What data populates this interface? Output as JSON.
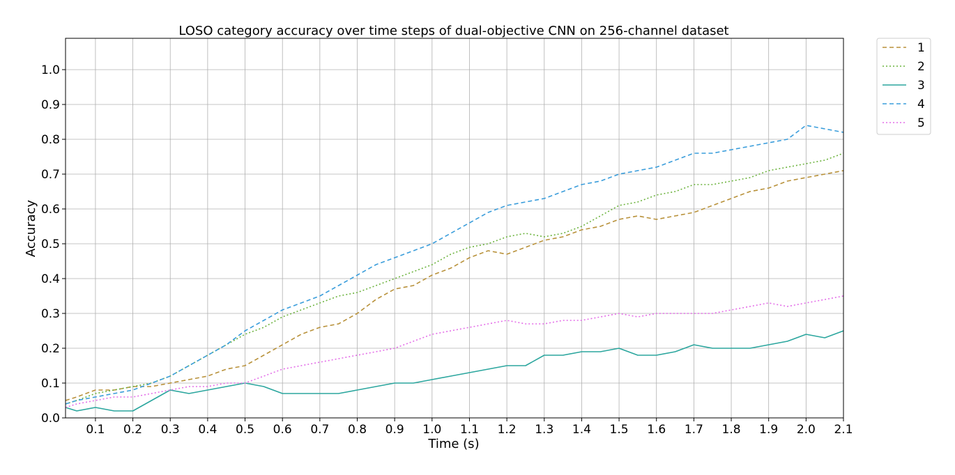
{
  "chart_data": {
    "type": "line",
    "title": "LOSO category accuracy over time steps of dual-objective CNN on 256-channel dataset",
    "xlabel": "Time (s)",
    "ylabel": "Accuracy",
    "xlim": [
      0.02,
      2.1
    ],
    "ylim": [
      0.0,
      1.09
    ],
    "x_ticks": [
      "0.1",
      "0.2",
      "0.3",
      "0.4",
      "0.5",
      "0.6",
      "0.7",
      "0.8",
      "0.9",
      "1.0",
      "1.1",
      "1.2",
      "1.3",
      "1.4",
      "1.5",
      "1.6",
      "1.7",
      "1.8",
      "1.9",
      "2.0",
      "2.1"
    ],
    "y_ticks": [
      "0.0",
      "0.1",
      "0.2",
      "0.3",
      "0.4",
      "0.5",
      "0.6",
      "0.7",
      "0.8",
      "0.9",
      "1.0"
    ],
    "grid": true,
    "legend_position": "outside-top-right",
    "x": [
      0.02,
      0.05,
      0.1,
      0.15,
      0.2,
      0.25,
      0.3,
      0.35,
      0.4,
      0.45,
      0.5,
      0.55,
      0.6,
      0.65,
      0.7,
      0.75,
      0.8,
      0.85,
      0.9,
      0.95,
      1.0,
      1.05,
      1.1,
      1.15,
      1.2,
      1.25,
      1.3,
      1.35,
      1.4,
      1.45,
      1.5,
      1.55,
      1.6,
      1.65,
      1.7,
      1.75,
      1.8,
      1.85,
      1.9,
      1.95,
      2.0,
      2.05,
      2.1
    ],
    "series": [
      {
        "name": "1",
        "color": "#b8913a",
        "dash": "6,4",
        "values": [
          0.05,
          0.06,
          0.08,
          0.08,
          0.09,
          0.09,
          0.1,
          0.11,
          0.12,
          0.14,
          0.15,
          0.18,
          0.21,
          0.24,
          0.26,
          0.27,
          0.3,
          0.34,
          0.37,
          0.38,
          0.41,
          0.43,
          0.46,
          0.48,
          0.47,
          0.49,
          0.51,
          0.52,
          0.54,
          0.55,
          0.57,
          0.58,
          0.57,
          0.58,
          0.59,
          0.61,
          0.63,
          0.65,
          0.66,
          0.68,
          0.69,
          0.7,
          0.71
        ]
      },
      {
        "name": "2",
        "color": "#6db33f",
        "dash": "2,3",
        "values": [
          0.04,
          0.05,
          0.07,
          0.08,
          0.09,
          0.1,
          0.12,
          0.15,
          0.18,
          0.21,
          0.24,
          0.26,
          0.29,
          0.31,
          0.33,
          0.35,
          0.36,
          0.38,
          0.4,
          0.42,
          0.44,
          0.47,
          0.49,
          0.5,
          0.52,
          0.53,
          0.52,
          0.53,
          0.55,
          0.58,
          0.61,
          0.62,
          0.64,
          0.65,
          0.67,
          0.67,
          0.68,
          0.69,
          0.71,
          0.72,
          0.73,
          0.74,
          0.76
        ]
      },
      {
        "name": "3",
        "color": "#2ba69e",
        "dash": "",
        "values": [
          0.03,
          0.02,
          0.03,
          0.02,
          0.02,
          0.05,
          0.08,
          0.07,
          0.08,
          0.09,
          0.1,
          0.09,
          0.07,
          0.07,
          0.07,
          0.07,
          0.08,
          0.09,
          0.1,
          0.1,
          0.11,
          0.12,
          0.13,
          0.14,
          0.15,
          0.15,
          0.18,
          0.18,
          0.19,
          0.19,
          0.2,
          0.18,
          0.18,
          0.19,
          0.21,
          0.2,
          0.2,
          0.2,
          0.21,
          0.22,
          0.24,
          0.23,
          0.25
        ]
      },
      {
        "name": "4",
        "color": "#3a9ddb",
        "dash": "6,4",
        "values": [
          0.04,
          0.05,
          0.06,
          0.07,
          0.08,
          0.1,
          0.12,
          0.15,
          0.18,
          0.21,
          0.25,
          0.28,
          0.31,
          0.33,
          0.35,
          0.38,
          0.41,
          0.44,
          0.46,
          0.48,
          0.5,
          0.53,
          0.56,
          0.59,
          0.61,
          0.62,
          0.63,
          0.65,
          0.67,
          0.68,
          0.7,
          0.71,
          0.72,
          0.74,
          0.76,
          0.76,
          0.77,
          0.78,
          0.79,
          0.8,
          0.84,
          0.83,
          0.82
        ]
      },
      {
        "name": "5",
        "color": "#e46ee8",
        "dash": "2,3",
        "values": [
          0.03,
          0.04,
          0.05,
          0.06,
          0.06,
          0.07,
          0.08,
          0.09,
          0.09,
          0.1,
          0.1,
          0.12,
          0.14,
          0.15,
          0.16,
          0.17,
          0.18,
          0.19,
          0.2,
          0.22,
          0.24,
          0.25,
          0.26,
          0.27,
          0.28,
          0.27,
          0.27,
          0.28,
          0.28,
          0.29,
          0.3,
          0.29,
          0.3,
          0.3,
          0.3,
          0.3,
          0.31,
          0.32,
          0.33,
          0.32,
          0.33,
          0.34,
          0.35
        ]
      }
    ]
  }
}
